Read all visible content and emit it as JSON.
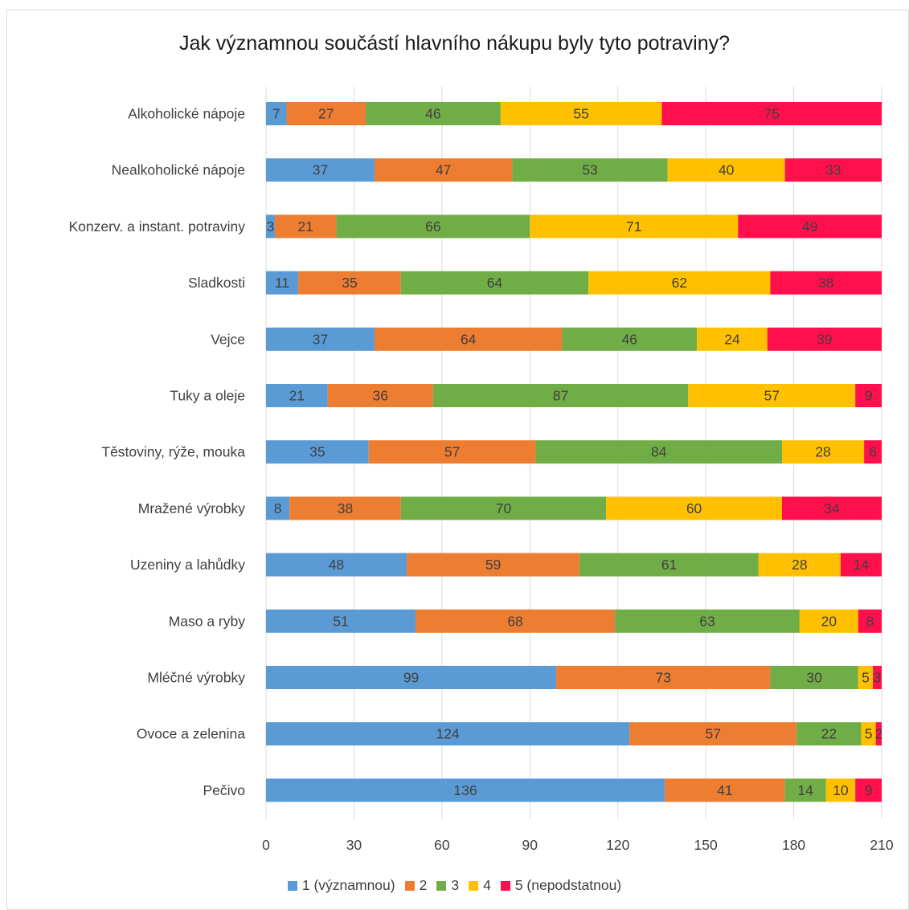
{
  "chart_data": {
    "type": "bar",
    "orientation": "horizontal",
    "stacked": true,
    "title": "Jak významnou součástí hlavního nákupu byly tyto potraviny?",
    "categories": [
      "Alkoholické nápoje",
      "Nealkoholické nápoje",
      "Konzerv. a instant. potraviny",
      "Sladkosti",
      "Vejce",
      "Tuky a oleje",
      "Těstoviny, rýže, mouka",
      "Mražené výrobky",
      "Uzeniny a lahůdky",
      "Maso a ryby",
      "Mléčné výrobky",
      "Ovoce a zelenina",
      "Pečivo"
    ],
    "series": [
      {
        "name": "1 (významnou)",
        "color": "#5b9bd5",
        "values": [
          7,
          37,
          3,
          11,
          37,
          21,
          35,
          8,
          48,
          51,
          99,
          124,
          136
        ]
      },
      {
        "name": "2",
        "color": "#ed7d31",
        "values": [
          27,
          47,
          21,
          35,
          64,
          36,
          57,
          38,
          59,
          68,
          73,
          57,
          41
        ]
      },
      {
        "name": "3",
        "color": "#70ad47",
        "values": [
          46,
          53,
          66,
          64,
          46,
          87,
          84,
          70,
          61,
          63,
          30,
          22,
          14
        ]
      },
      {
        "name": "4",
        "color": "#ffc000",
        "values": [
          55,
          40,
          71,
          62,
          24,
          57,
          28,
          60,
          28,
          20,
          5,
          5,
          10
        ]
      },
      {
        "name": "5 (nepodstatnou)",
        "color": "#ff0f4b",
        "values": [
          75,
          33,
          49,
          38,
          39,
          9,
          6,
          34,
          14,
          8,
          3,
          2,
          9
        ]
      }
    ],
    "xlim": [
      0,
      210
    ],
    "xticks": [
      0,
      30,
      60,
      90,
      120,
      150,
      180,
      210
    ],
    "grid": true,
    "legend_position": "bottom"
  }
}
